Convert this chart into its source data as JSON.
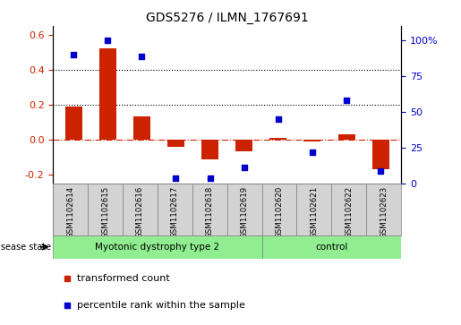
{
  "title": "GDS5276 / ILMN_1767691",
  "samples": [
    "GSM1102614",
    "GSM1102615",
    "GSM1102616",
    "GSM1102617",
    "GSM1102618",
    "GSM1102619",
    "GSM1102620",
    "GSM1102621",
    "GSM1102622",
    "GSM1102623"
  ],
  "red_values": [
    0.19,
    0.52,
    0.135,
    -0.04,
    -0.11,
    -0.065,
    0.01,
    -0.01,
    0.03,
    -0.17
  ],
  "blue_pct": [
    90,
    100,
    89,
    4,
    4,
    11,
    45,
    22,
    58,
    9
  ],
  "n_group1": 6,
  "n_group2": 4,
  "group1_label": "Myotonic dystrophy type 2",
  "group2_label": "control",
  "ylim_left": [
    -0.25,
    0.65
  ],
  "ylim_right": [
    0,
    110
  ],
  "yticks_left": [
    -0.2,
    0.0,
    0.2,
    0.4,
    0.6
  ],
  "yticks_right": [
    0,
    25,
    50,
    75,
    100
  ],
  "ytick_labels_right": [
    "0",
    "25",
    "50",
    "75",
    "100%"
  ],
  "hline_y": 0.0,
  "dotted_lines": [
    0.2,
    0.4
  ],
  "bar_color": "#cc2200",
  "dot_color": "#0000cc",
  "bar_width": 0.5,
  "legend_label_red": "transformed count",
  "legend_label_blue": "percentile rank within the sample",
  "disease_state_label": "disease state",
  "sample_box_color": "#d3d3d3",
  "group_box_color": "#90EE90",
  "background_color": "#ffffff",
  "title_fontsize": 10,
  "axis_fontsize": 8,
  "legend_fontsize": 8,
  "label_fontsize": 7
}
